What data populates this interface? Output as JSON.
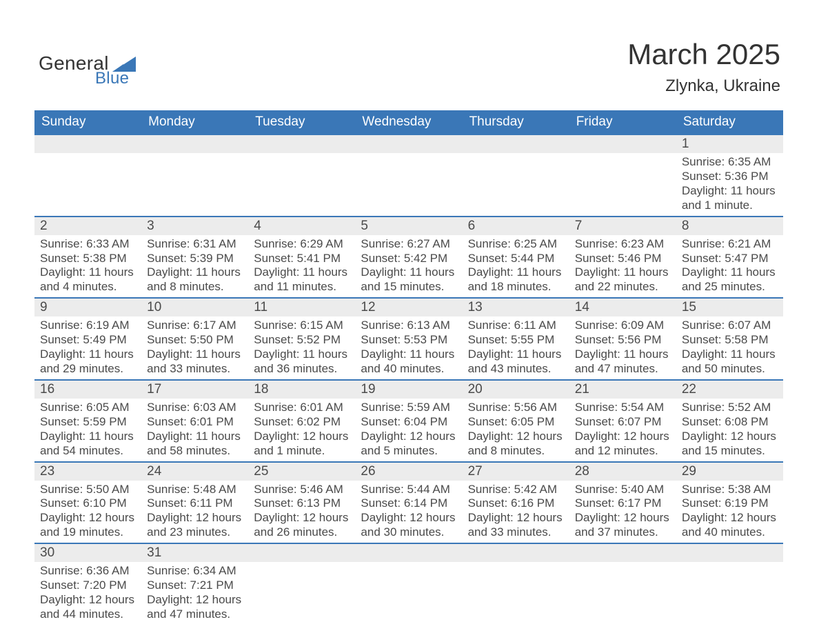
{
  "logo": {
    "brand_top": "General",
    "brand_bottom": "Blue"
  },
  "title": "March 2025",
  "subtitle": "Zlynka, Ukraine",
  "colors": {
    "header_bg": "#3a77b7",
    "header_text": "#ffffff",
    "daynum_bg": "#ececec",
    "row_border": "#3a77b7",
    "body_text": "#4a4a4a",
    "page_bg": "#ffffff",
    "logo_accent": "#3a77b7"
  },
  "typography": {
    "title_fontsize": 42,
    "subtitle_fontsize": 24,
    "header_fontsize": 19,
    "daynum_fontsize": 19,
    "detail_fontsize": 17
  },
  "day_headers": [
    "Sunday",
    "Monday",
    "Tuesday",
    "Wednesday",
    "Thursday",
    "Friday",
    "Saturday"
  ],
  "weeks": [
    [
      null,
      null,
      null,
      null,
      null,
      null,
      {
        "n": "1",
        "sunrise": "6:35 AM",
        "sunset": "5:36 PM",
        "daylight": "11 hours and 1 minute."
      }
    ],
    [
      {
        "n": "2",
        "sunrise": "6:33 AM",
        "sunset": "5:38 PM",
        "daylight": "11 hours and 4 minutes."
      },
      {
        "n": "3",
        "sunrise": "6:31 AM",
        "sunset": "5:39 PM",
        "daylight": "11 hours and 8 minutes."
      },
      {
        "n": "4",
        "sunrise": "6:29 AM",
        "sunset": "5:41 PM",
        "daylight": "11 hours and 11 minutes."
      },
      {
        "n": "5",
        "sunrise": "6:27 AM",
        "sunset": "5:42 PM",
        "daylight": "11 hours and 15 minutes."
      },
      {
        "n": "6",
        "sunrise": "6:25 AM",
        "sunset": "5:44 PM",
        "daylight": "11 hours and 18 minutes."
      },
      {
        "n": "7",
        "sunrise": "6:23 AM",
        "sunset": "5:46 PM",
        "daylight": "11 hours and 22 minutes."
      },
      {
        "n": "8",
        "sunrise": "6:21 AM",
        "sunset": "5:47 PM",
        "daylight": "11 hours and 25 minutes."
      }
    ],
    [
      {
        "n": "9",
        "sunrise": "6:19 AM",
        "sunset": "5:49 PM",
        "daylight": "11 hours and 29 minutes."
      },
      {
        "n": "10",
        "sunrise": "6:17 AM",
        "sunset": "5:50 PM",
        "daylight": "11 hours and 33 minutes."
      },
      {
        "n": "11",
        "sunrise": "6:15 AM",
        "sunset": "5:52 PM",
        "daylight": "11 hours and 36 minutes."
      },
      {
        "n": "12",
        "sunrise": "6:13 AM",
        "sunset": "5:53 PM",
        "daylight": "11 hours and 40 minutes."
      },
      {
        "n": "13",
        "sunrise": "6:11 AM",
        "sunset": "5:55 PM",
        "daylight": "11 hours and 43 minutes."
      },
      {
        "n": "14",
        "sunrise": "6:09 AM",
        "sunset": "5:56 PM",
        "daylight": "11 hours and 47 minutes."
      },
      {
        "n": "15",
        "sunrise": "6:07 AM",
        "sunset": "5:58 PM",
        "daylight": "11 hours and 50 minutes."
      }
    ],
    [
      {
        "n": "16",
        "sunrise": "6:05 AM",
        "sunset": "5:59 PM",
        "daylight": "11 hours and 54 minutes."
      },
      {
        "n": "17",
        "sunrise": "6:03 AM",
        "sunset": "6:01 PM",
        "daylight": "11 hours and 58 minutes."
      },
      {
        "n": "18",
        "sunrise": "6:01 AM",
        "sunset": "6:02 PM",
        "daylight": "12 hours and 1 minute."
      },
      {
        "n": "19",
        "sunrise": "5:59 AM",
        "sunset": "6:04 PM",
        "daylight": "12 hours and 5 minutes."
      },
      {
        "n": "20",
        "sunrise": "5:56 AM",
        "sunset": "6:05 PM",
        "daylight": "12 hours and 8 minutes."
      },
      {
        "n": "21",
        "sunrise": "5:54 AM",
        "sunset": "6:07 PM",
        "daylight": "12 hours and 12 minutes."
      },
      {
        "n": "22",
        "sunrise": "5:52 AM",
        "sunset": "6:08 PM",
        "daylight": "12 hours and 15 minutes."
      }
    ],
    [
      {
        "n": "23",
        "sunrise": "5:50 AM",
        "sunset": "6:10 PM",
        "daylight": "12 hours and 19 minutes."
      },
      {
        "n": "24",
        "sunrise": "5:48 AM",
        "sunset": "6:11 PM",
        "daylight": "12 hours and 23 minutes."
      },
      {
        "n": "25",
        "sunrise": "5:46 AM",
        "sunset": "6:13 PM",
        "daylight": "12 hours and 26 minutes."
      },
      {
        "n": "26",
        "sunrise": "5:44 AM",
        "sunset": "6:14 PM",
        "daylight": "12 hours and 30 minutes."
      },
      {
        "n": "27",
        "sunrise": "5:42 AM",
        "sunset": "6:16 PM",
        "daylight": "12 hours and 33 minutes."
      },
      {
        "n": "28",
        "sunrise": "5:40 AM",
        "sunset": "6:17 PM",
        "daylight": "12 hours and 37 minutes."
      },
      {
        "n": "29",
        "sunrise": "5:38 AM",
        "sunset": "6:19 PM",
        "daylight": "12 hours and 40 minutes."
      }
    ],
    [
      {
        "n": "30",
        "sunrise": "6:36 AM",
        "sunset": "7:20 PM",
        "daylight": "12 hours and 44 minutes."
      },
      {
        "n": "31",
        "sunrise": "6:34 AM",
        "sunset": "7:21 PM",
        "daylight": "12 hours and 47 minutes."
      },
      null,
      null,
      null,
      null,
      null
    ]
  ],
  "labels": {
    "sunrise": "Sunrise:",
    "sunset": "Sunset:",
    "daylight": "Daylight:"
  }
}
